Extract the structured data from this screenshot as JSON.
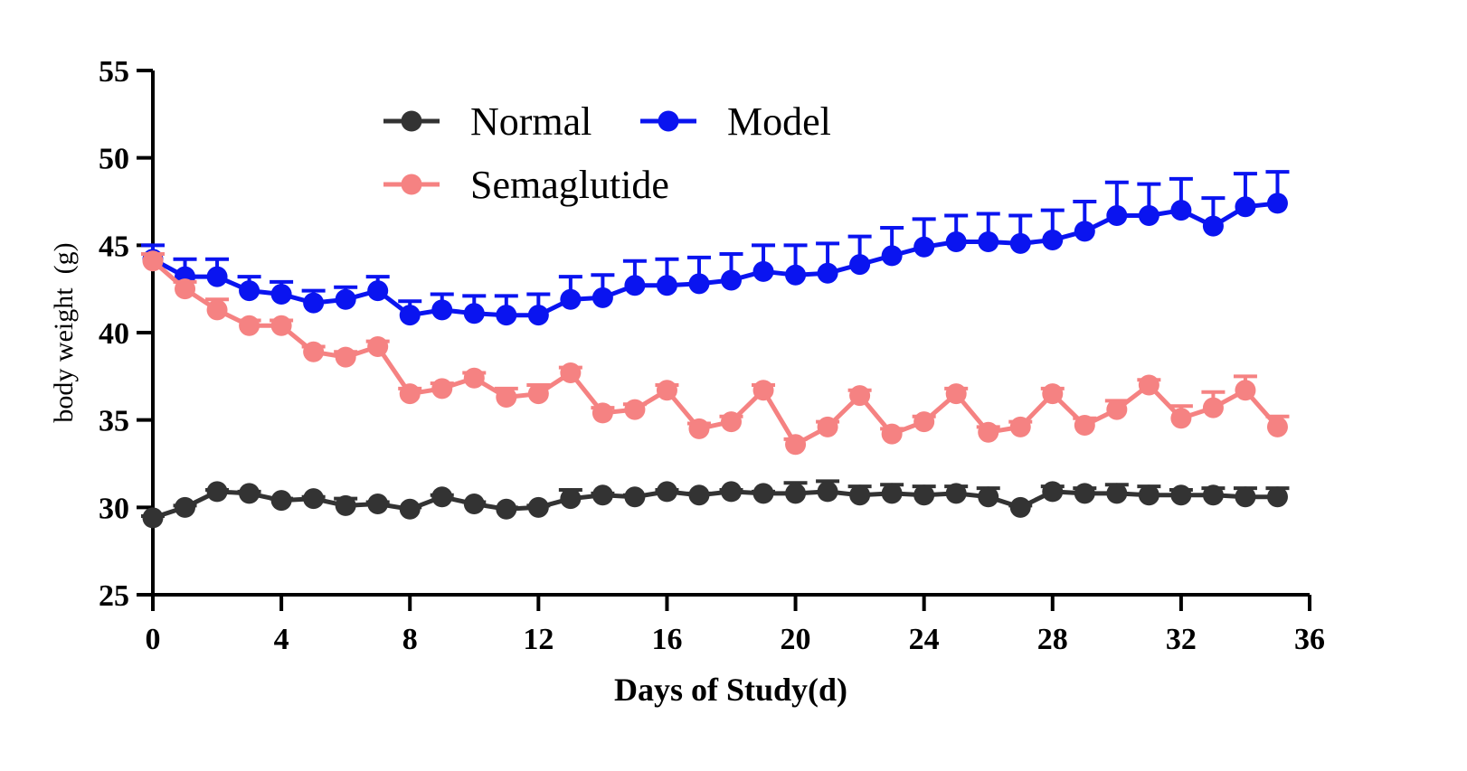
{
  "chart_data": {
    "type": "line",
    "title": "",
    "xlabel": "Days of Study(d)",
    "ylabel": "body weight  (g)",
    "xlim": [
      0,
      36
    ],
    "ylim": [
      25,
      55
    ],
    "xticks": [
      0,
      4,
      8,
      12,
      16,
      20,
      24,
      28,
      32,
      36
    ],
    "yticks": [
      25,
      30,
      35,
      40,
      45,
      50,
      55
    ],
    "grid": false,
    "legend_position": "top-center",
    "x": [
      0,
      1,
      2,
      3,
      4,
      5,
      6,
      7,
      8,
      9,
      10,
      11,
      12,
      13,
      14,
      15,
      16,
      17,
      18,
      19,
      20,
      21,
      22,
      23,
      24,
      25,
      26,
      27,
      28,
      29,
      30,
      31,
      32,
      33,
      34,
      35
    ],
    "series": [
      {
        "name": "Model",
        "color": "#0a14f0",
        "values": [
          44.2,
          43.2,
          43.2,
          42.4,
          42.2,
          41.7,
          41.9,
          42.4,
          41.0,
          41.3,
          41.1,
          41.0,
          41.0,
          41.9,
          42.0,
          42.7,
          42.7,
          42.8,
          43.0,
          43.5,
          43.3,
          43.4,
          43.9,
          44.4,
          44.9,
          45.2,
          45.2,
          45.1,
          45.3,
          45.8,
          46.7,
          46.7,
          47.0,
          46.1,
          47.2,
          47.4
        ],
        "error": [
          0.8,
          1.0,
          1.0,
          0.8,
          0.7,
          0.7,
          0.7,
          0.8,
          0.8,
          0.9,
          1.0,
          1.1,
          1.2,
          1.3,
          1.3,
          1.4,
          1.5,
          1.5,
          1.5,
          1.5,
          1.7,
          1.7,
          1.6,
          1.6,
          1.6,
          1.5,
          1.6,
          1.6,
          1.7,
          1.7,
          1.9,
          1.8,
          1.8,
          1.6,
          1.9,
          1.8
        ]
      },
      {
        "name": "Semaglutide",
        "color": "#f58282",
        "values": [
          44.1,
          42.5,
          41.3,
          40.4,
          40.4,
          38.9,
          38.6,
          39.2,
          36.5,
          36.8,
          37.4,
          36.3,
          36.5,
          37.7,
          35.4,
          35.6,
          36.7,
          34.5,
          34.9,
          36.7,
          33.6,
          34.6,
          36.4,
          34.2,
          34.9,
          36.5,
          34.3,
          34.6,
          36.5,
          34.7,
          35.6,
          37.0,
          35.1,
          35.7,
          36.7,
          34.6
        ],
        "error": [
          0.4,
          0.4,
          0.6,
          0.3,
          0.3,
          0.3,
          0.3,
          0.3,
          0.3,
          0.3,
          0.3,
          0.5,
          0.5,
          0.3,
          0.3,
          0.3,
          0.3,
          0.3,
          0.3,
          0.3,
          0.3,
          0.3,
          0.3,
          0.3,
          0.3,
          0.3,
          0.3,
          0.3,
          0.3,
          0.4,
          0.5,
          0.3,
          0.7,
          0.9,
          0.8,
          0.6
        ]
      },
      {
        "name": "Normal",
        "color": "#333333",
        "values": [
          29.4,
          30.0,
          30.9,
          30.8,
          30.4,
          30.5,
          30.1,
          30.2,
          29.9,
          30.6,
          30.2,
          29.9,
          30.0,
          30.5,
          30.7,
          30.6,
          30.9,
          30.7,
          30.9,
          30.8,
          30.8,
          30.9,
          30.7,
          30.8,
          30.7,
          30.8,
          30.6,
          30.0,
          30.9,
          30.8,
          30.8,
          30.7,
          30.7,
          30.7,
          30.6,
          30.6
        ],
        "error": [
          0.1,
          0.1,
          0.1,
          0.1,
          0.1,
          0.1,
          0.4,
          0.1,
          0.1,
          0.1,
          0.1,
          0.1,
          0.1,
          0.5,
          0.1,
          0.1,
          0.1,
          0.1,
          0.1,
          0.1,
          0.6,
          0.6,
          0.5,
          0.5,
          0.5,
          0.4,
          0.5,
          0.1,
          0.3,
          0.3,
          0.5,
          0.5,
          0.3,
          0.4,
          0.5,
          0.5
        ]
      }
    ],
    "legend": [
      {
        "label": "Normal",
        "series": "Normal"
      },
      {
        "label": "Model",
        "series": "Model"
      },
      {
        "label": "Semaglutide",
        "series": "Semaglutide"
      }
    ]
  }
}
